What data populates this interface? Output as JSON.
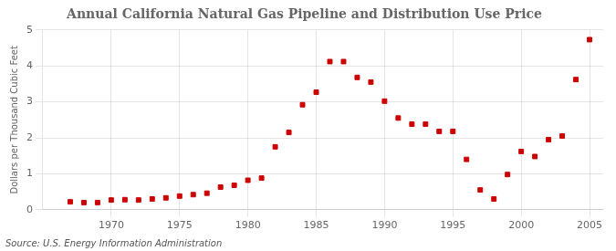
{
  "chart_data": {
    "type": "scatter",
    "title": "Annual California Natural Gas Pipeline and Distribution Use Price",
    "ylabel": "Dollars per Thousand Cubic Feet",
    "source": "Source: U.S. Energy Information Administration",
    "x": [
      1967,
      1968,
      1969,
      1970,
      1971,
      1972,
      1973,
      1974,
      1975,
      1976,
      1977,
      1978,
      1979,
      1980,
      1981,
      1982,
      1983,
      1984,
      1985,
      1986,
      1987,
      1988,
      1989,
      1990,
      1991,
      1992,
      1993,
      1994,
      1995,
      1996,
      1997,
      1998,
      1999,
      2000,
      2001,
      2002,
      2003,
      2004,
      2005
    ],
    "values": [
      0.22,
      0.2,
      0.2,
      0.27,
      0.28,
      0.27,
      0.3,
      0.33,
      0.38,
      0.42,
      0.46,
      0.63,
      0.68,
      0.82,
      0.88,
      1.75,
      2.15,
      2.92,
      3.27,
      4.12,
      4.12,
      3.68,
      3.55,
      3.02,
      2.55,
      2.38,
      2.38,
      2.18,
      2.18,
      1.4,
      0.55,
      0.3,
      0.98,
      1.62,
      1.48,
      1.95,
      2.05,
      3.62,
      4.73
    ],
    "color": "#cc0000",
    "marker": "square",
    "xlim": [
      1965,
      2006
    ],
    "ylim": [
      0,
      5
    ],
    "xticks": [
      1970,
      1975,
      1980,
      1985,
      1990,
      1995,
      2000,
      2005
    ],
    "yticks": [
      0,
      1,
      2,
      3,
      4,
      5
    ],
    "grid": true
  }
}
